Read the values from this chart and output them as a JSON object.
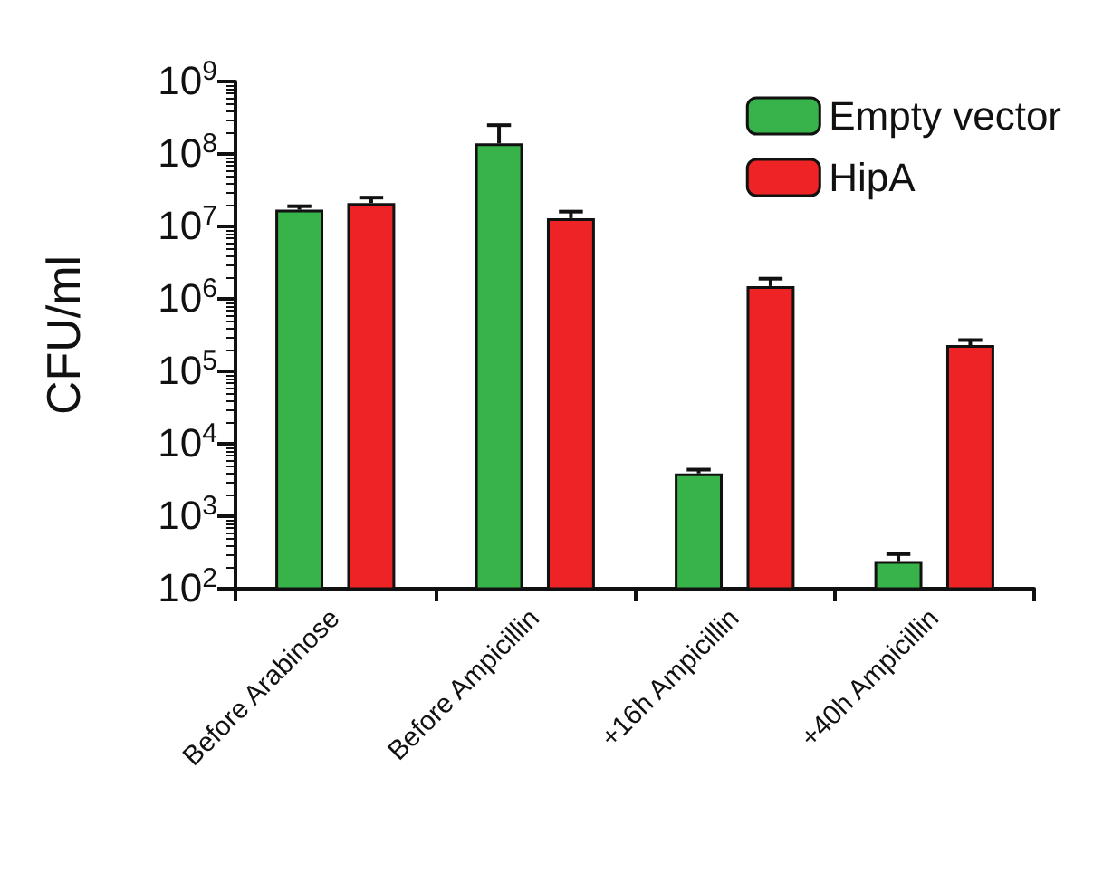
{
  "chart_data": {
    "type": "bar",
    "ylabel": "CFU/ml",
    "log": "y",
    "ylim": [
      100,
      1000000000
    ],
    "yticks": [
      {
        "value": 100,
        "label": "10$^{2}$"
      },
      {
        "value": 1000,
        "label": "10$^{3}$"
      },
      {
        "value": 10000,
        "label": "10$^{4}$"
      },
      {
        "value": 100000,
        "label": "10$^{5}$"
      },
      {
        "value": 1000000,
        "label": "10$^{6}$"
      },
      {
        "value": 10000000,
        "label": "10$^{7}$"
      },
      {
        "value": 100000000,
        "label": "10$^{8}$"
      },
      {
        "value": 1000000000,
        "label": "10$^{9}$"
      }
    ],
    "categories": [
      "Before Arabinose",
      "Before Ampicillin",
      "+16h Ampicillin",
      "+40h Ampicillin"
    ],
    "series": [
      {
        "name": "Empty vector",
        "color": "#37b34a",
        "values": [
          17000000,
          140000000,
          3900,
          240
        ],
        "errors": [
          2000000,
          110000000,
          500,
          60
        ]
      },
      {
        "name": "HipA",
        "color": "#ee2325",
        "values": [
          21000000,
          13000000,
          1500000,
          230000
        ],
        "errors": [
          4000000,
          3000000,
          400000,
          40000
        ]
      }
    ],
    "legend": "top right",
    "grid": false
  }
}
